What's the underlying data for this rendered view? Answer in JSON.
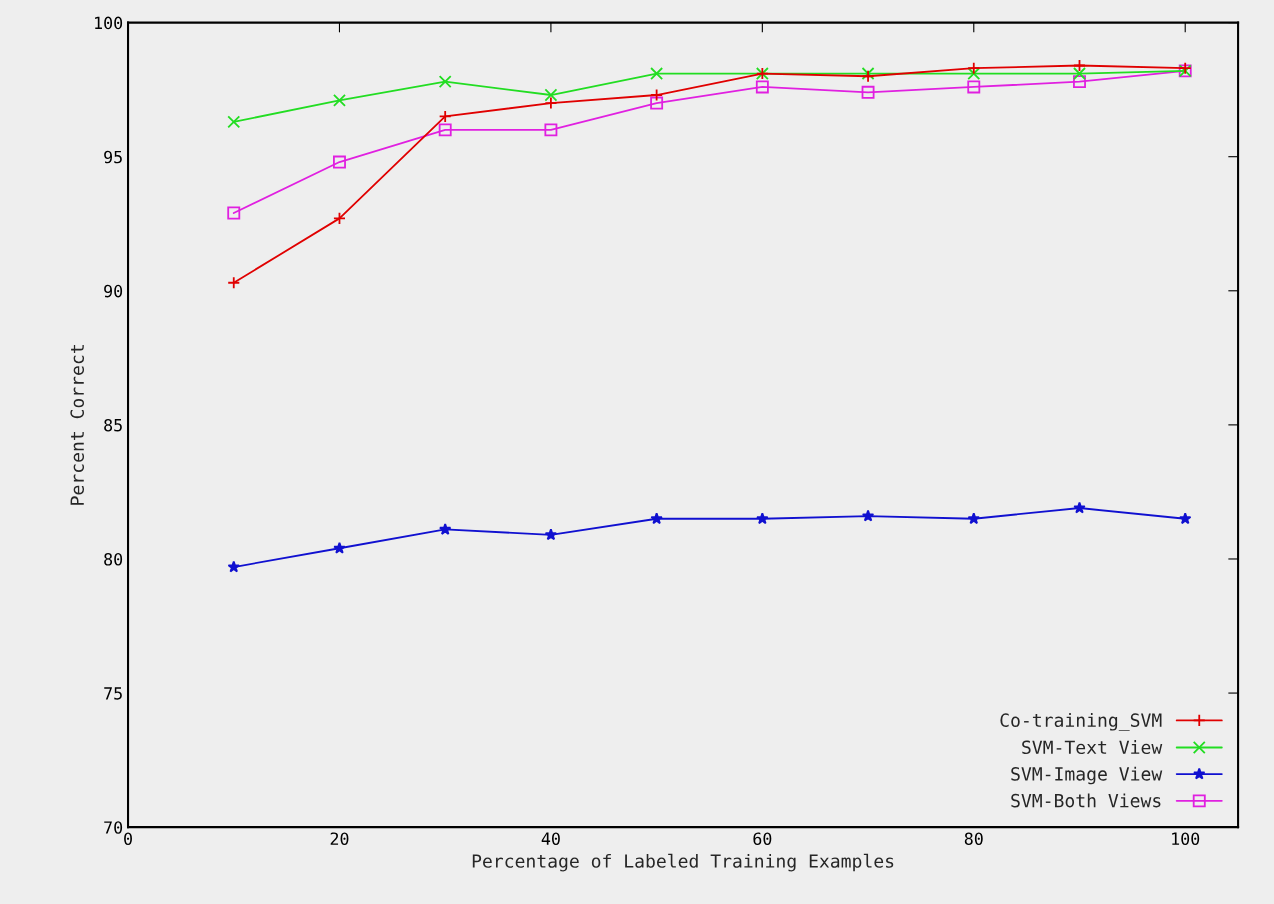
{
  "chart_data": {
    "type": "line",
    "xlabel": "Percentage of Labeled Training Examples",
    "ylabel": "Percent Correct",
    "x": [
      10,
      20,
      30,
      40,
      50,
      60,
      70,
      80,
      90,
      100
    ],
    "xlim": [
      0,
      105
    ],
    "xticks": [
      0,
      20,
      40,
      60,
      80,
      100
    ],
    "ylim": [
      70,
      100
    ],
    "yticks": [
      70,
      75,
      80,
      85,
      90,
      95,
      100
    ],
    "grid": false,
    "legend": "bottom right",
    "series": [
      {
        "name": "Co-training_SVM",
        "color": "#e00000",
        "marker": "cross",
        "values": [
          90.3,
          92.7,
          96.5,
          97.0,
          97.3,
          98.1,
          98.0,
          98.3,
          98.4,
          98.3
        ]
      },
      {
        "name": "SVM-Text View",
        "color": "#22dd22",
        "marker": "x",
        "values": [
          96.3,
          97.1,
          97.8,
          97.3,
          98.1,
          98.1,
          98.1,
          98.1,
          98.1,
          98.2
        ]
      },
      {
        "name": "SVM-Image View",
        "color": "#1010d0",
        "marker": "star",
        "values": [
          79.7,
          80.4,
          81.1,
          80.9,
          81.5,
          81.5,
          81.6,
          81.5,
          81.9,
          81.5
        ]
      },
      {
        "name": "SVM-Both Views",
        "color": "#e020e0",
        "marker": "square",
        "values": [
          92.9,
          94.8,
          96.0,
          96.0,
          97.0,
          97.6,
          97.4,
          97.6,
          97.8,
          98.2
        ]
      }
    ]
  }
}
